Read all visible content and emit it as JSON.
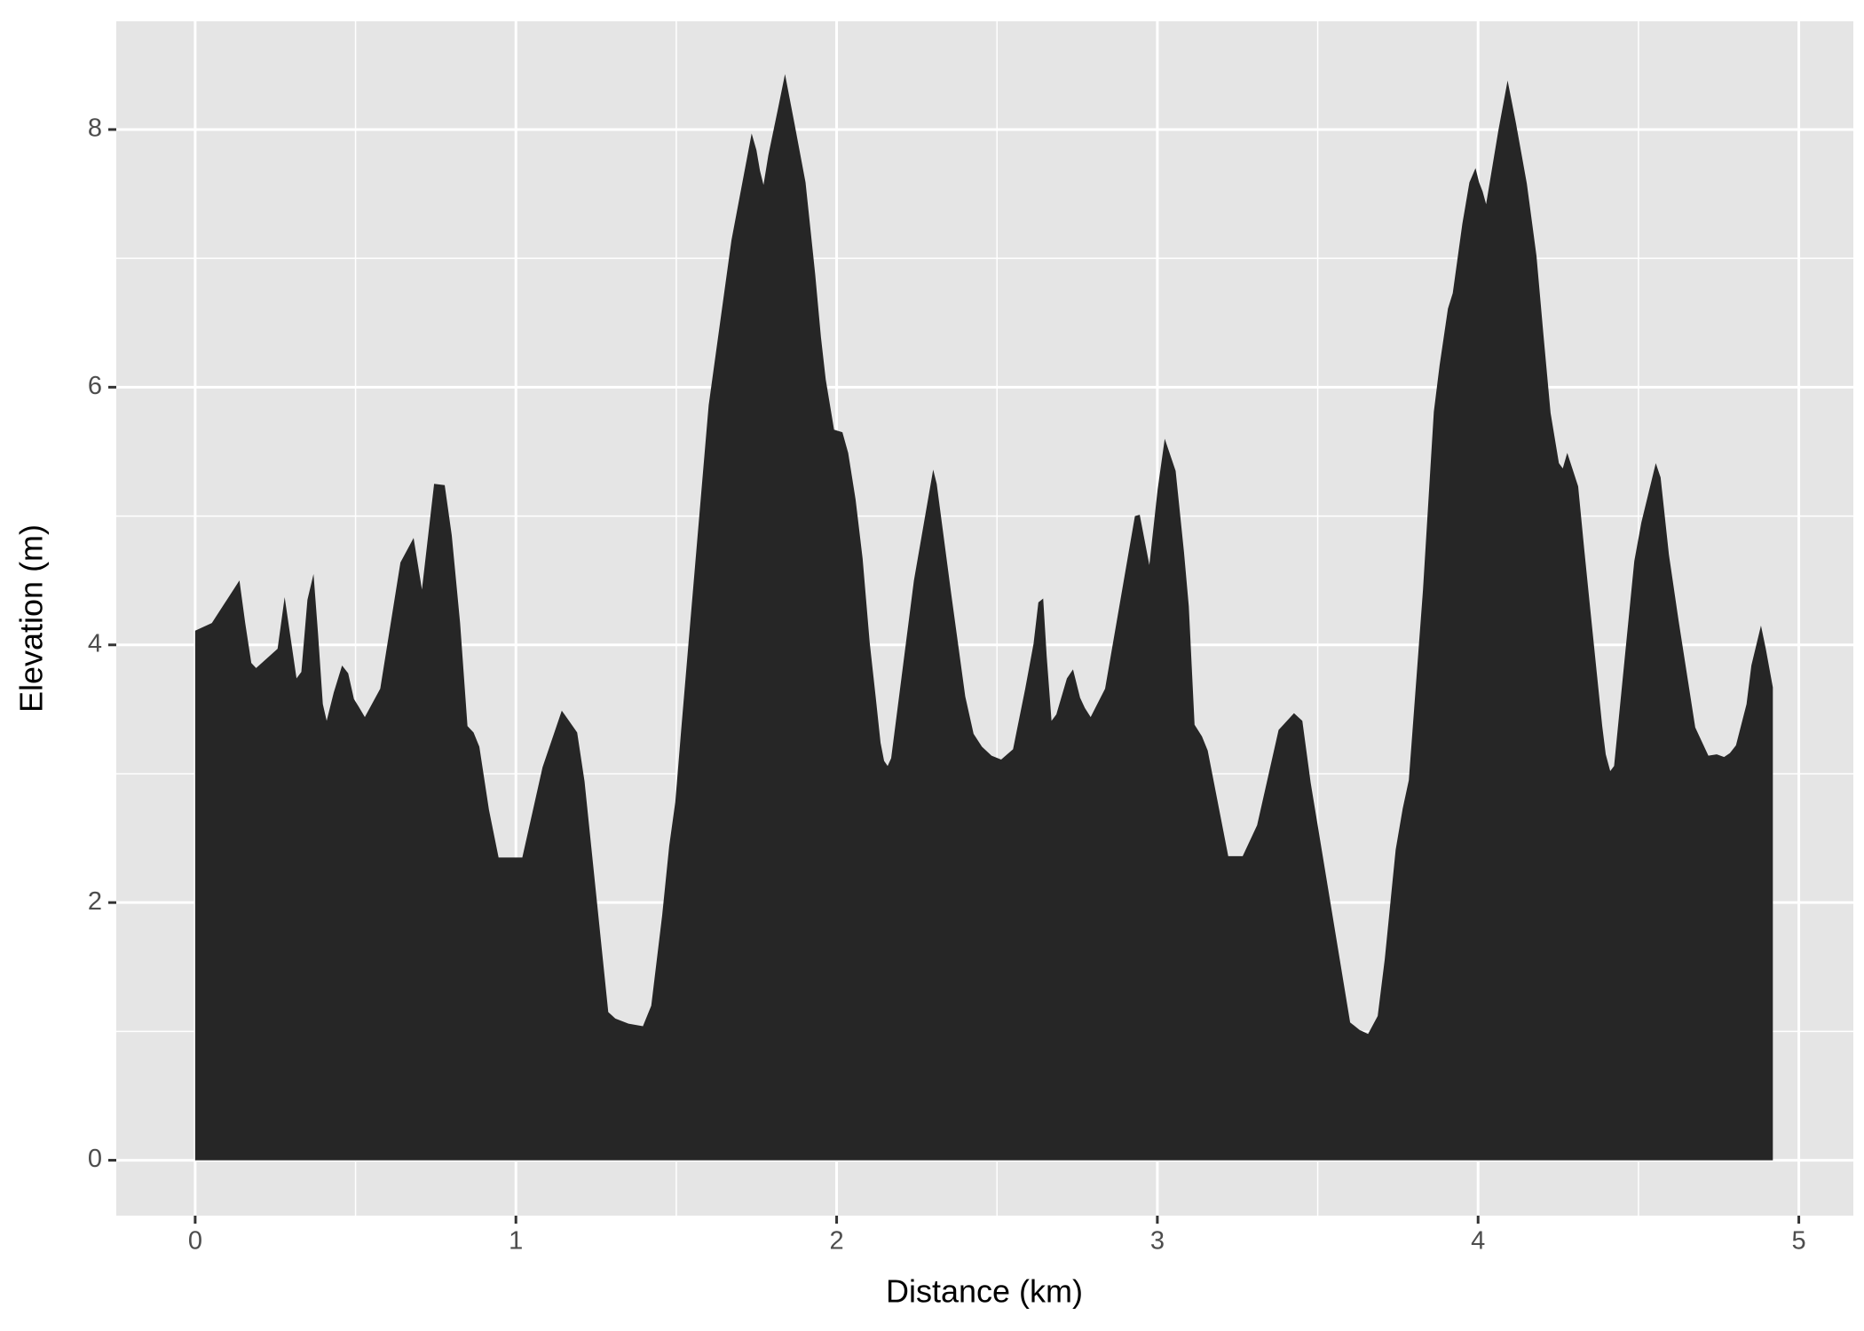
{
  "chart_data": {
    "type": "area",
    "x_label": "Distance (km)",
    "y_label": "Elevation (m)",
    "color": "#262626",
    "grid": true,
    "xlim": [
      -0.246,
      5.17
    ],
    "ylim": [
      -0.43,
      8.84
    ],
    "xticks": [
      0,
      1,
      2,
      3,
      4,
      5
    ],
    "yticks": [
      0,
      2,
      4,
      6,
      8
    ],
    "x": [
      0,
      0.052,
      0.138,
      0.156,
      0.175,
      0.19,
      0.257,
      0.279,
      0.316,
      0.331,
      0.35,
      0.369,
      0.383,
      0.398,
      0.41,
      0.432,
      0.458,
      0.477,
      0.495,
      0.51,
      0.529,
      0.577,
      0.64,
      0.681,
      0.707,
      0.745,
      0.778,
      0.8,
      0.826,
      0.849,
      0.868,
      0.886,
      0.916,
      0.946,
      1.02,
      1.083,
      1.143,
      1.191,
      1.214,
      1.288,
      1.31,
      1.351,
      1.396,
      1.422,
      1.456,
      1.478,
      1.497,
      1.515,
      1.538,
      1.601,
      1.672,
      1.735,
      1.75,
      1.761,
      1.772,
      1.787,
      1.817,
      1.839,
      1.869,
      1.903,
      1.933,
      1.951,
      1.966,
      1.992,
      2.018,
      2.036,
      2.059,
      2.081,
      2.103,
      2.122,
      2.137,
      2.148,
      2.159,
      2.17,
      2.241,
      2.301,
      2.312,
      2.357,
      2.401,
      2.427,
      2.453,
      2.483,
      2.513,
      2.55,
      2.588,
      2.614,
      2.629,
      2.644,
      2.655,
      2.67,
      2.685,
      2.718,
      2.737,
      2.759,
      2.774,
      2.792,
      2.837,
      2.93,
      2.945,
      2.975,
      3.001,
      3.023,
      3.057,
      3.083,
      3.098,
      3.116,
      3.139,
      3.157,
      3.221,
      3.266,
      3.311,
      3.378,
      3.426,
      3.452,
      3.478,
      3.601,
      3.631,
      3.657,
      3.687,
      3.709,
      3.743,
      3.765,
      3.784,
      3.828,
      3.862,
      3.88,
      3.906,
      3.921,
      3.951,
      3.973,
      3.992,
      4.003,
      4.014,
      4.025,
      4.063,
      4.092,
      4.118,
      4.152,
      4.182,
      4.204,
      4.226,
      4.252,
      4.264,
      4.278,
      4.312,
      4.331,
      4.35,
      4.387,
      4.398,
      4.412,
      4.424,
      4.487,
      4.509,
      4.554,
      4.569,
      4.595,
      4.625,
      4.677,
      4.718,
      4.744,
      4.767,
      4.785,
      4.804,
      4.837,
      4.852,
      4.882,
      4.897,
      4.919
    ],
    "values": [
      4.11,
      4.17,
      4.5,
      4.17,
      3.86,
      3.82,
      3.97,
      4.37,
      3.74,
      3.79,
      4.35,
      4.55,
      4.09,
      3.54,
      3.41,
      3.63,
      3.84,
      3.78,
      3.58,
      3.52,
      3.44,
      3.66,
      4.64,
      4.83,
      4.43,
      5.25,
      5.24,
      4.85,
      4.17,
      3.37,
      3.32,
      3.21,
      2.72,
      2.35,
      2.35,
      3.05,
      3.49,
      3.32,
      2.94,
      1.15,
      1.1,
      1.06,
      1.04,
      1.2,
      1.9,
      2.44,
      2.78,
      3.33,
      4.01,
      5.86,
      7.14,
      7.97,
      7.84,
      7.68,
      7.57,
      7.8,
      8.16,
      8.43,
      8.04,
      7.59,
      6.88,
      6.39,
      6.06,
      5.67,
      5.65,
      5.49,
      5.13,
      4.67,
      4.02,
      3.59,
      3.24,
      3.1,
      3.06,
      3.12,
      4.5,
      5.36,
      5.25,
      4.4,
      3.6,
      3.31,
      3.21,
      3.14,
      3.11,
      3.19,
      3.66,
      4.01,
      4.33,
      4.36,
      3.91,
      3.41,
      3.46,
      3.74,
      3.81,
      3.59,
      3.51,
      3.44,
      3.66,
      5.0,
      5.01,
      4.62,
      5.21,
      5.6,
      5.35,
      4.72,
      4.3,
      3.38,
      3.29,
      3.18,
      2.36,
      2.36,
      2.6,
      3.34,
      3.47,
      3.41,
      2.93,
      1.07,
      1.01,
      0.98,
      1.12,
      1.56,
      2.41,
      2.73,
      2.95,
      4.42,
      5.81,
      6.17,
      6.61,
      6.73,
      7.27,
      7.59,
      7.7,
      7.59,
      7.52,
      7.42,
      7.99,
      8.38,
      8.05,
      7.58,
      7.02,
      6.4,
      5.8,
      5.41,
      5.37,
      5.49,
      5.23,
      4.74,
      4.27,
      3.37,
      3.15,
      3.02,
      3.06,
      4.65,
      4.95,
      5.41,
      5.3,
      4.7,
      4.19,
      3.36,
      3.14,
      3.15,
      3.13,
      3.16,
      3.22,
      3.54,
      3.84,
      4.15,
      3.97,
      3.67
    ]
  }
}
